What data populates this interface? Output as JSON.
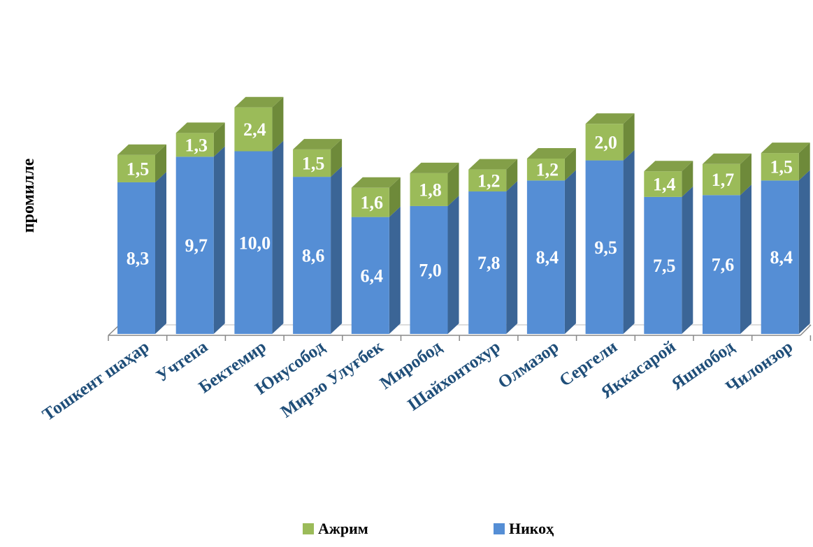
{
  "chart_data": {
    "type": "bar",
    "stacked": true,
    "three_d": true,
    "ylabel": "промилле",
    "categories": [
      "Тошкент шаҳар",
      "Учтепа",
      "Бектемир",
      "Юнусобод",
      "Мирзо Улуғбек",
      "Миробод",
      "Шайхонтохур",
      "Олмазор",
      "Сергели",
      "Яккасарой",
      "Яшнобод",
      "Чилонзор"
    ],
    "series": [
      {
        "name": "Никоҳ",
        "color": "#558ED5",
        "values": [
          8.3,
          9.7,
          10.0,
          8.6,
          6.4,
          7.0,
          7.8,
          8.4,
          9.5,
          7.5,
          7.6,
          8.4
        ],
        "labels": [
          "8,3",
          "9,7",
          "10,0",
          "8,6",
          "6,4",
          "7,0",
          "7,8",
          "8,4",
          "9,5",
          "7,5",
          "7,6",
          "8,4"
        ]
      },
      {
        "name": "Ажрим",
        "color": "#9BBB59",
        "values": [
          1.5,
          1.3,
          2.4,
          1.5,
          1.6,
          1.8,
          1.2,
          1.2,
          2.0,
          1.4,
          1.7,
          1.5
        ],
        "labels": [
          "1,5",
          "1,3",
          "2,4",
          "1,5",
          "1,6",
          "1,8",
          "1,2",
          "1,2",
          "2,0",
          "1,4",
          "1,7",
          "1,5"
        ]
      }
    ],
    "legend": {
      "position": "bottom",
      "items": [
        "Ажрим",
        "Никоҳ"
      ]
    },
    "grid": false
  }
}
